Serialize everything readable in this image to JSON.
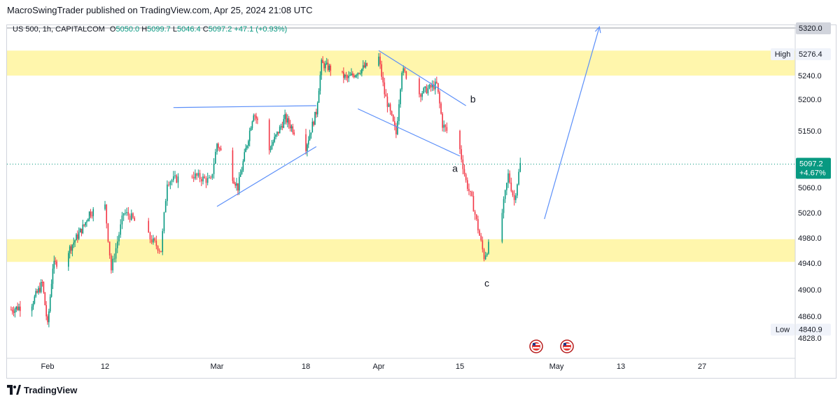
{
  "header": {
    "publisher": "MacroSwingTrader published on TradingView.com, Apr 25, 2024 21:08 UTC"
  },
  "legend": {
    "symbol": "US 500, 1h, CAPITALCOM",
    "o_label": "O",
    "o_value": "5050.0",
    "h_label": "H",
    "h_value": "5099.7",
    "l_label": "L",
    "l_value": "5046.4",
    "c_label": "C",
    "c_value": "5097.2",
    "change": "+47.1 (+0.93%)"
  },
  "footer": {
    "brand": "TradingView"
  },
  "colors": {
    "up": "#089981",
    "down": "#f23645",
    "zone": "#fff59d",
    "drawing": "#5b8ff9",
    "grid": "#f0f3fa",
    "current_badge": "#089981"
  },
  "chart_data": {
    "type": "candlestick",
    "x_ticks": [
      "Feb",
      "12",
      "Mar",
      "18",
      "Apr",
      "15",
      "May",
      "13",
      "27"
    ],
    "y_ticks": [
      "5240.0",
      "5200.0",
      "5150.0",
      "5060.0",
      "5020.0",
      "4980.0",
      "4940.0",
      "4900.0",
      "4860.0",
      "4828.0"
    ],
    "ylim": [
      4810,
      5340
    ],
    "price_labels": {
      "target": "5320.0",
      "high_label": "High",
      "high_value": "5276.4",
      "current": "5097.2",
      "current_change": "+4.67%",
      "low_label": "Low",
      "low_value": "4840.9"
    },
    "zones": [
      {
        "from": 5240,
        "to": 5282
      },
      {
        "from": 4942,
        "to": 4978
      }
    ],
    "wave_labels": [
      "a",
      "b",
      "c"
    ],
    "path_anchors": [
      {
        "date": "2024-01-25",
        "price": 4870
      },
      {
        "date": "2024-01-29",
        "price": 4880
      },
      {
        "date": "2024-01-31",
        "price": 4910
      },
      {
        "date": "2024-02-01",
        "price": 4845
      },
      {
        "date": "2024-02-02",
        "price": 4935
      },
      {
        "date": "2024-02-05",
        "price": 4960
      },
      {
        "date": "2024-02-08",
        "price": 5000
      },
      {
        "date": "2024-02-09",
        "price": 5020
      },
      {
        "date": "2024-02-12",
        "price": 5030
      },
      {
        "date": "2024-02-13",
        "price": 4930
      },
      {
        "date": "2024-02-15",
        "price": 5020
      },
      {
        "date": "2024-02-16",
        "price": 5015
      },
      {
        "date": "2024-02-21",
        "price": 4960
      },
      {
        "date": "2024-02-22",
        "price": 5070
      },
      {
        "date": "2024-02-26",
        "price": 5080
      },
      {
        "date": "2024-02-29",
        "price": 5070
      },
      {
        "date": "2024-03-01",
        "price": 5130
      },
      {
        "date": "2024-03-05",
        "price": 5060
      },
      {
        "date": "2024-03-08",
        "price": 5180
      },
      {
        "date": "2024-03-11",
        "price": 5120
      },
      {
        "date": "2024-03-14",
        "price": 5170
      },
      {
        "date": "2024-03-18",
        "price": 5125
      },
      {
        "date": "2024-03-20",
        "price": 5180
      },
      {
        "date": "2024-03-21",
        "price": 5260
      },
      {
        "date": "2024-03-26",
        "price": 5235
      },
      {
        "date": "2024-04-01",
        "price": 5270
      },
      {
        "date": "2024-04-02",
        "price": 5210
      },
      {
        "date": "2024-04-04",
        "price": 5145
      },
      {
        "date": "2024-04-05",
        "price": 5250
      },
      {
        "date": "2024-04-08",
        "price": 5210
      },
      {
        "date": "2024-04-11",
        "price": 5225
      },
      {
        "date": "2024-04-12",
        "price": 5160
      },
      {
        "date": "2024-04-15",
        "price": 5120
      },
      {
        "date": "2024-04-16",
        "price": 5070
      },
      {
        "date": "2024-04-17",
        "price": 5040
      },
      {
        "date": "2024-04-19",
        "price": 4950
      },
      {
        "date": "2024-04-22",
        "price": 5020
      },
      {
        "date": "2024-04-23",
        "price": 5080
      },
      {
        "date": "2024-04-24",
        "price": 5040
      },
      {
        "date": "2024-04-25",
        "price": 5097
      }
    ],
    "drawings": [
      {
        "type": "trendline",
        "from": {
          "date": "2024-02-23",
          "price": 5187
        },
        "to": {
          "date": "2024-03-20",
          "price": 5190
        }
      },
      {
        "type": "trendline",
        "from": {
          "date": "2024-03-01",
          "price": 5030
        },
        "to": {
          "date": "2024-03-20",
          "price": 5125
        }
      },
      {
        "type": "trendline",
        "from": {
          "date": "2024-04-01",
          "price": 5282
        },
        "to": {
          "date": "2024-04-16",
          "price": 5190
        }
      },
      {
        "type": "trendline",
        "from": {
          "date": "2024-03-28",
          "price": 5185
        },
        "to": {
          "date": "2024-04-15",
          "price": 5110
        }
      },
      {
        "type": "arrow",
        "from": {
          "date": "2024-04-29",
          "price": 5010
        },
        "to": {
          "date": "2024-05-09",
          "price": 5322
        }
      }
    ]
  }
}
